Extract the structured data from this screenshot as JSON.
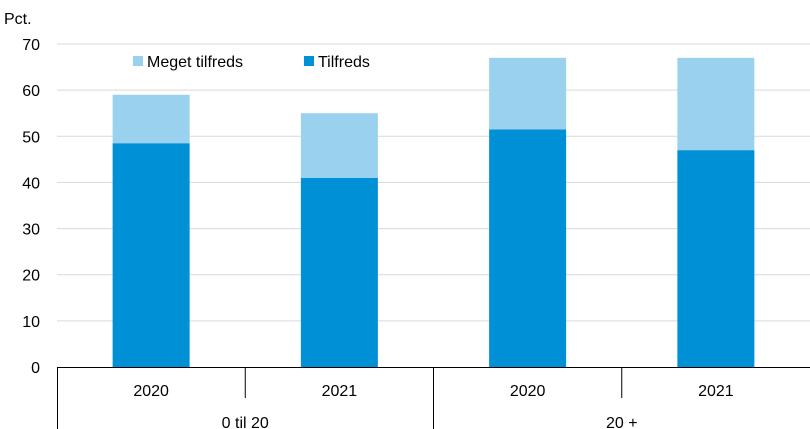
{
  "chart_data": {
    "type": "bar",
    "stacked": true,
    "ylabel": "Pct.",
    "ylim": [
      0,
      70
    ],
    "yticks": [
      0,
      10,
      20,
      30,
      40,
      50,
      60,
      70
    ],
    "grid": true,
    "legend_position": "top-left",
    "groups": [
      {
        "label": "0 til 20",
        "categories": [
          "2020",
          "2021"
        ]
      },
      {
        "label": "20 +",
        "categories": [
          "2020",
          "2021"
        ]
      }
    ],
    "categories": [
      "2020",
      "2021",
      "2020",
      "2021"
    ],
    "series": [
      {
        "name": "Tilfreds",
        "color": "#0090D6",
        "values": [
          48.5,
          41,
          51.5,
          47
        ]
      },
      {
        "name": "Meget tilfreds",
        "color": "#99D1EE",
        "values": [
          10.5,
          14,
          15.5,
          20
        ]
      }
    ],
    "legend_order": [
      "Meget tilfreds",
      "Tilfreds"
    ]
  }
}
